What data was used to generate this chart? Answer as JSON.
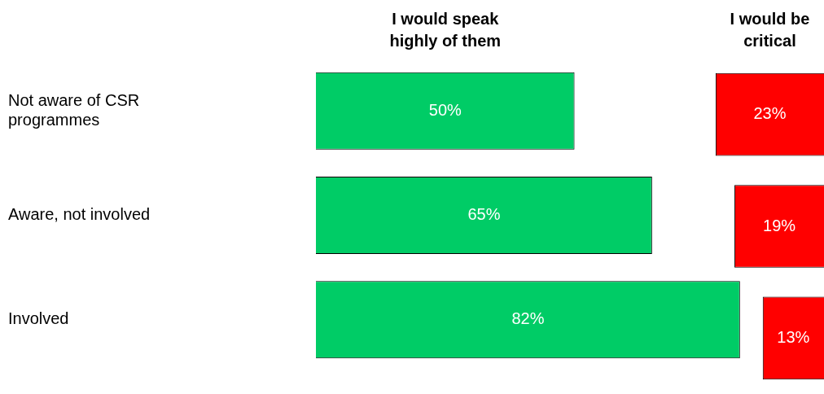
{
  "chart_data": [
    {
      "type": "bar",
      "orientation": "horizontal",
      "tick_labels": "y",
      "xlim": [
        0,
        82.5
      ],
      "categories": [
        "Not aware of CSR programmes",
        "Aware, not involved",
        "Involved"
      ],
      "series": [
        {
          "name": "I would speak highly of them",
          "color": "#00cc66",
          "values": [
            50,
            65,
            82
          ],
          "value_labels": [
            "50%",
            "65%",
            "82%"
          ]
        }
      ]
    },
    {
      "type": "bar",
      "orientation": "horizontal",
      "tick_labels": false,
      "xlim": [
        23.5,
        0
      ],
      "categories": [
        null,
        null,
        null
      ],
      "series": [
        {
          "name": "I would be critical",
          "color": "#ff0000",
          "values": [
            23,
            19,
            13
          ],
          "value_labels": [
            "23%",
            "19%",
            "13%"
          ]
        }
      ]
    }
  ]
}
